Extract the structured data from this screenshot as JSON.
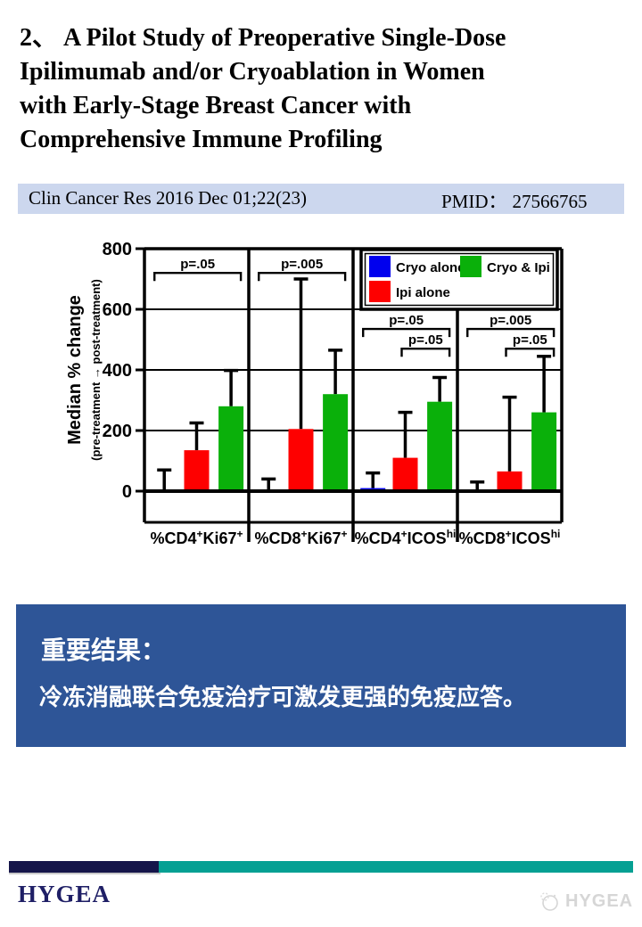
{
  "title": {
    "text": "2、 A Pilot Study of Preoperative Single-Dose\nIpilimumab and/or Cryoablation in Women\nwith Early-Stage Breast Cancer with\nComprehensive Immune Profiling"
  },
  "citation": {
    "journal": "Clin Cancer Res 2016 Dec 01;22(23)",
    "pmid_label": "PMID：",
    "pmid": "27566765",
    "bg_color": "#ccd7ee"
  },
  "chart_data": {
    "type": "bar",
    "ylabel": "Median % change",
    "ylabel_sub": "(pre-treatment → post-treatment)",
    "ylim": [
      0,
      800
    ],
    "yticks": [
      0,
      200,
      400,
      600,
      800
    ],
    "grid": true,
    "legend_position": "top-right",
    "categories": [
      [
        {
          "t": "%CD4",
          "sup": false
        },
        {
          "t": "+",
          "sup": true
        },
        {
          "t": "Ki67",
          "sup": false
        },
        {
          "t": "+",
          "sup": true
        }
      ],
      [
        {
          "t": "%CD8",
          "sup": false
        },
        {
          "t": "+",
          "sup": true
        },
        {
          "t": "Ki67",
          "sup": false
        },
        {
          "t": "+",
          "sup": true
        }
      ],
      [
        {
          "t": "%CD4",
          "sup": false
        },
        {
          "t": "+",
          "sup": true
        },
        {
          "t": "ICOS",
          "sup": false
        },
        {
          "t": "hi",
          "sup": true
        }
      ],
      [
        {
          "t": "%CD8",
          "sup": false
        },
        {
          "t": "+",
          "sup": true
        },
        {
          "t": "ICOS",
          "sup": false
        },
        {
          "t": "hi",
          "sup": true
        }
      ]
    ],
    "series": [
      {
        "name": "Cryo alone",
        "color": "#0000ee",
        "values": [
          0,
          0,
          10,
          5
        ],
        "errors_upper": [
          70,
          40,
          60,
          30
        ]
      },
      {
        "name": "Ipi alone",
        "color": "#fe0000",
        "values": [
          135,
          205,
          110,
          65
        ],
        "errors_upper": [
          225,
          700,
          260,
          310
        ]
      },
      {
        "name": "Cryo & Ipi",
        "color": "#0ab00a",
        "values": [
          280,
          320,
          295,
          260
        ],
        "errors_upper": [
          398,
          465,
          375,
          445
        ]
      }
    ],
    "legend_rows": [
      [
        0,
        2
      ],
      [
        1
      ]
    ],
    "significance": [
      {
        "panel": 0,
        "label": "p=.05",
        "from_series": 0,
        "to_series": 2,
        "y": 720
      },
      {
        "panel": 1,
        "label": "p=.005",
        "from_series": 0,
        "to_series": 2,
        "y": 720
      },
      {
        "panel": 2,
        "label": "p=.05",
        "from_series": 0,
        "to_series": 2,
        "y": 535
      },
      {
        "panel": 2,
        "label": "p=.05",
        "from_series": 1,
        "to_series": 2,
        "y": 470
      },
      {
        "panel": 3,
        "label": "p=.005",
        "from_series": 0,
        "to_series": 2,
        "y": 535
      },
      {
        "panel": 3,
        "label": "p=.05",
        "from_series": 1,
        "to_series": 2,
        "y": 470
      }
    ]
  },
  "result_box": {
    "bg_color": "#2e5597",
    "heading": "重要结果：",
    "body": "冷冻消融联合免疫治疗可激发更强的免疫应答。"
  },
  "footer": {
    "logo": "HYGEA",
    "watermark": "HYGEA",
    "navy_color": "#15154a",
    "teal_color": "#05a093"
  }
}
